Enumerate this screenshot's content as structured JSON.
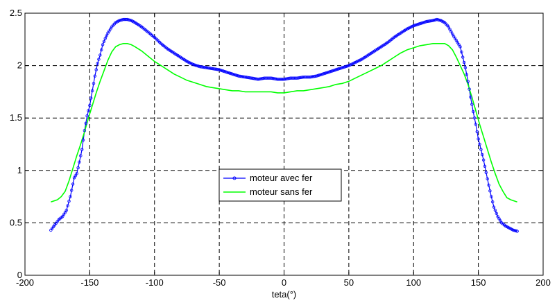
{
  "chart_data": {
    "type": "line",
    "title": "",
    "xlabel": "teta(°)",
    "ylabel": "",
    "xlim": [
      -200,
      200
    ],
    "ylim": [
      0,
      2.5
    ],
    "xticks": [
      -200,
      -150,
      -100,
      -50,
      0,
      50,
      100,
      150,
      200
    ],
    "xtick_labels": [
      "-200",
      "-150",
      "-100",
      "-50",
      "0",
      "50",
      "100",
      "150",
      "200"
    ],
    "yticks": [
      0,
      0.5,
      1,
      1.5,
      2,
      2.5
    ],
    "ytick_labels": [
      "0",
      "0.5",
      "1",
      "1.5",
      "2",
      "2.5"
    ],
    "grid": true,
    "grid_style": "dashed",
    "legend_placement": "center",
    "series": [
      {
        "name": "moteur avec fer",
        "color": "#0000FF",
        "marker": "circle",
        "x": [
          -180,
          -177,
          -174,
          -171,
          -168,
          -165,
          -162,
          -160,
          -158,
          -156,
          -154,
          -152,
          -150,
          -148,
          -146,
          -144,
          -142,
          -140,
          -138,
          -136,
          -133,
          -130,
          -127,
          -124,
          -121,
          -118,
          -115,
          -110,
          -105,
          -100,
          -95,
          -90,
          -85,
          -80,
          -75,
          -70,
          -65,
          -60,
          -55,
          -50,
          -45,
          -40,
          -35,
          -30,
          -25,
          -20,
          -15,
          -10,
          -5,
          0,
          5,
          10,
          15,
          20,
          25,
          30,
          35,
          40,
          45,
          50,
          55,
          60,
          65,
          70,
          75,
          80,
          85,
          90,
          95,
          100,
          105,
          110,
          115,
          118,
          121,
          124,
          127,
          130,
          133,
          136,
          138,
          140,
          142,
          144,
          146,
          148,
          150,
          152,
          154,
          156,
          158,
          160,
          162,
          165,
          168,
          171,
          174,
          177,
          180
        ],
        "y": [
          0.43,
          0.48,
          0.53,
          0.56,
          0.62,
          0.75,
          0.93,
          0.97,
          1.08,
          1.2,
          1.38,
          1.52,
          1.62,
          1.76,
          1.9,
          2.02,
          2.1,
          2.2,
          2.26,
          2.31,
          2.37,
          2.41,
          2.43,
          2.44,
          2.44,
          2.43,
          2.41,
          2.37,
          2.32,
          2.27,
          2.21,
          2.16,
          2.12,
          2.08,
          2.04,
          2.01,
          1.99,
          1.98,
          1.97,
          1.96,
          1.94,
          1.92,
          1.9,
          1.89,
          1.88,
          1.87,
          1.88,
          1.88,
          1.87,
          1.87,
          1.88,
          1.88,
          1.89,
          1.89,
          1.9,
          1.92,
          1.94,
          1.96,
          1.98,
          2.0,
          2.03,
          2.06,
          2.1,
          2.14,
          2.18,
          2.22,
          2.27,
          2.31,
          2.35,
          2.38,
          2.4,
          2.42,
          2.43,
          2.44,
          2.43,
          2.41,
          2.37,
          2.3,
          2.24,
          2.18,
          2.08,
          1.98,
          1.85,
          1.7,
          1.56,
          1.44,
          1.3,
          1.2,
          1.1,
          0.98,
          0.86,
          0.75,
          0.65,
          0.56,
          0.5,
          0.47,
          0.45,
          0.43,
          0.42
        ]
      },
      {
        "name": "moteur sans fer",
        "color": "#00FF00",
        "marker": "none",
        "x": [
          -180,
          -175,
          -172,
          -169,
          -166,
          -163,
          -160,
          -157,
          -154,
          -151,
          -148,
          -145,
          -142,
          -139,
          -136,
          -133,
          -130,
          -127,
          -124,
          -121,
          -118,
          -115,
          -110,
          -105,
          -100,
          -95,
          -90,
          -85,
          -80,
          -75,
          -70,
          -65,
          -60,
          -55,
          -50,
          -45,
          -40,
          -35,
          -30,
          -25,
          -20,
          -15,
          -10,
          -5,
          0,
          5,
          10,
          15,
          20,
          25,
          30,
          35,
          40,
          45,
          50,
          55,
          60,
          65,
          70,
          75,
          80,
          85,
          90,
          95,
          100,
          105,
          110,
          115,
          118,
          121,
          124,
          127,
          130,
          133,
          136,
          139,
          142,
          145,
          148,
          151,
          154,
          157,
          160,
          163,
          166,
          169,
          172,
          175,
          180
        ],
        "y": [
          0.7,
          0.72,
          0.75,
          0.8,
          0.9,
          1.02,
          1.14,
          1.25,
          1.37,
          1.5,
          1.62,
          1.74,
          1.85,
          1.95,
          2.05,
          2.13,
          2.18,
          2.2,
          2.21,
          2.21,
          2.2,
          2.18,
          2.14,
          2.09,
          2.04,
          2.0,
          1.96,
          1.92,
          1.89,
          1.86,
          1.84,
          1.82,
          1.8,
          1.79,
          1.78,
          1.77,
          1.76,
          1.76,
          1.75,
          1.75,
          1.75,
          1.75,
          1.75,
          1.74,
          1.74,
          1.75,
          1.76,
          1.76,
          1.77,
          1.78,
          1.79,
          1.8,
          1.82,
          1.83,
          1.85,
          1.88,
          1.91,
          1.94,
          1.97,
          2.0,
          2.04,
          2.08,
          2.12,
          2.15,
          2.17,
          2.19,
          2.2,
          2.21,
          2.21,
          2.21,
          2.21,
          2.19,
          2.15,
          2.08,
          2.0,
          1.92,
          1.82,
          1.7,
          1.57,
          1.44,
          1.32,
          1.2,
          1.08,
          0.97,
          0.87,
          0.8,
          0.74,
          0.72,
          0.7
        ]
      }
    ]
  }
}
